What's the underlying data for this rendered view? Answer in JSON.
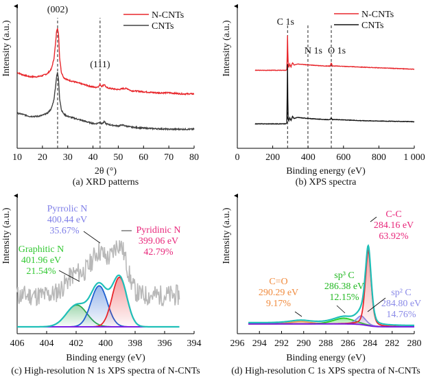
{
  "chart_data": [
    {
      "id": "a",
      "type": "line",
      "caption": "(a) XRD patterns",
      "xlabel": "2θ (°)",
      "ylabel": "Intensity (a.u.)",
      "xlim": [
        10,
        80
      ],
      "xticks": [
        10,
        20,
        30,
        40,
        50,
        60,
        70,
        80
      ],
      "legend": {
        "position": "top-right",
        "entries": [
          {
            "name": "N-CNTs",
            "color": "#e8262b"
          },
          {
            "name": "CNTs",
            "color": "#404040"
          }
        ]
      },
      "annotations": [
        {
          "text": "(002)",
          "x": 26.0
        },
        {
          "text": "(111)",
          "x": 42.8
        }
      ],
      "reference_lines": [
        26.0,
        42.8
      ],
      "series": [
        {
          "name": "N-CNTs",
          "color": "#e8262b",
          "x": [
            10,
            12,
            15,
            18,
            20,
            22,
            23.5,
            24.5,
            25.2,
            25.6,
            26.0,
            26.4,
            26.8,
            27.5,
            28.5,
            30,
            33,
            36,
            39,
            41,
            42.3,
            42.8,
            43.4,
            44,
            44.5,
            45.2,
            47,
            50,
            52,
            53.5,
            55,
            60,
            65,
            70,
            75,
            80
          ],
          "y": [
            0.58,
            0.56,
            0.54,
            0.54,
            0.55,
            0.57,
            0.61,
            0.7,
            0.85,
            0.97,
            1.0,
            0.92,
            0.72,
            0.58,
            0.53,
            0.51,
            0.49,
            0.47,
            0.45,
            0.44,
            0.45,
            0.47,
            0.45,
            0.46,
            0.47,
            0.44,
            0.43,
            0.42,
            0.43,
            0.43,
            0.41,
            0.4,
            0.39,
            0.39,
            0.38,
            0.38
          ]
        },
        {
          "name": "CNTs",
          "color": "#404040",
          "x": [
            10,
            12,
            15,
            18,
            20,
            22,
            23.5,
            24.5,
            25.2,
            25.6,
            26.0,
            26.4,
            26.8,
            27.5,
            28.5,
            30,
            33,
            36,
            39,
            41,
            42.3,
            42.8,
            43.4,
            44,
            44.5,
            45.2,
            47,
            50,
            51.5,
            53,
            55,
            60,
            65,
            70,
            75,
            80
          ],
          "y": [
            0.2,
            0.19,
            0.17,
            0.17,
            0.18,
            0.2,
            0.24,
            0.32,
            0.45,
            0.55,
            0.58,
            0.5,
            0.34,
            0.23,
            0.19,
            0.17,
            0.15,
            0.13,
            0.11,
            0.1,
            0.11,
            0.12,
            0.1,
            0.11,
            0.12,
            0.1,
            0.09,
            0.08,
            0.09,
            0.08,
            0.07,
            0.06,
            0.055,
            0.05,
            0.05,
            0.05
          ]
        }
      ]
    },
    {
      "id": "b",
      "type": "line",
      "caption": "(b) XPS spectra",
      "xlabel": "Binding energy (eV)",
      "ylabel": "Intensity (a.u.)",
      "xlim": [
        0,
        1000
      ],
      "xticks": [
        0,
        200,
        400,
        600,
        800,
        1000
      ],
      "xtick_labels": [
        "0",
        "200",
        "400",
        "600",
        "800",
        "1 000"
      ],
      "legend": {
        "position": "top-right",
        "entries": [
          {
            "name": "N-CNTs",
            "color": "#e8262b"
          },
          {
            "name": "CNTs",
            "color": "#111111"
          }
        ]
      },
      "annotations": [
        {
          "text": "C 1s",
          "x": 284
        },
        {
          "text": "N 1s",
          "x": 399
        },
        {
          "text": "O 1s",
          "x": 531
        }
      ],
      "reference_lines": [
        284,
        399,
        531
      ],
      "series": [
        {
          "name": "N-CNTs",
          "color": "#e8262b",
          "x": [
            100,
            275,
            280,
            282,
            284,
            286,
            290,
            296,
            303,
            312,
            320,
            340,
            400,
            500,
            525,
            531,
            537,
            560,
            700,
            850,
            1000
          ],
          "y": [
            0.6,
            0.6,
            0.61,
            0.75,
            0.97,
            0.7,
            0.62,
            0.66,
            0.63,
            0.67,
            0.65,
            0.66,
            0.65,
            0.64,
            0.64,
            0.67,
            0.64,
            0.64,
            0.63,
            0.62,
            0.61
          ]
        },
        {
          "name": "CNTs",
          "color": "#111111",
          "x": [
            100,
            275,
            280,
            282,
            284,
            286,
            290,
            296,
            303,
            312,
            320,
            340,
            400,
            500,
            525,
            531,
            537,
            560,
            700,
            850,
            1000
          ],
          "y": [
            0.1,
            0.1,
            0.11,
            0.4,
            0.72,
            0.18,
            0.12,
            0.16,
            0.13,
            0.17,
            0.15,
            0.16,
            0.15,
            0.14,
            0.14,
            0.155,
            0.14,
            0.14,
            0.13,
            0.125,
            0.12
          ]
        }
      ]
    },
    {
      "id": "c",
      "type": "area",
      "caption": "(c) High-resolution N 1s XPS spectra of N-CNTs",
      "xlabel": "Binding energy (eV)",
      "ylabel": "Intensity (a.u.)",
      "xlim": [
        406,
        394
      ],
      "xticks": [
        406,
        404,
        402,
        400,
        398,
        396,
        394
      ],
      "x_range_data": [
        406,
        395
      ],
      "baseline": 0.25,
      "components": [
        {
          "name": "Graphitic N",
          "energy_ev": 401.96,
          "percent": 21.54,
          "label_lines": [
            "Graphitic N",
            "401.96 eV",
            "21.54%"
          ],
          "color": "#2fa84f",
          "label_color": "#32c832",
          "center": 401.96,
          "height": 0.33,
          "sigma": 0.7
        },
        {
          "name": "Pyrrolic N",
          "energy_ev": 400.44,
          "percent": 35.67,
          "label_lines": [
            "Pyrrolic N",
            "400.44 eV",
            "35.67%"
          ],
          "color": "#1f5fd0",
          "label_color": "#7f7fe8",
          "center": 400.44,
          "height": 0.62,
          "sigma": 0.55
        },
        {
          "name": "Pyridinic N",
          "energy_ev": 399.06,
          "percent": 42.79,
          "label_lines": [
            "Pyridinic N",
            "399.06 eV",
            "42.79%"
          ],
          "color": "#e8262b",
          "label_color": "#e8267a",
          "center": 399.06,
          "height": 0.75,
          "sigma": 0.5
        }
      ],
      "envelope_color": "#1fbfb8",
      "baseline_color": "#7b1fe0",
      "raw_color": "#b8b8b8"
    },
    {
      "id": "d",
      "type": "area",
      "caption": "(d) High-resolution C 1s XPS spectra of N-CNTs",
      "xlabel": "Binding energy (eV)",
      "ylabel": "Intensity (a.u.)",
      "xlim": [
        296,
        280
      ],
      "xticks": [
        296,
        294,
        292,
        290,
        288,
        286,
        284,
        282,
        280
      ],
      "x_range_data": [
        295,
        280
      ],
      "baseline": 0.18,
      "components": [
        {
          "name": "C=O",
          "energy_ev": 290.29,
          "percent": 9.17,
          "label_lines": [
            "C=O",
            "290.29 eV",
            "9.17%"
          ],
          "color": "#e8a050",
          "label_color": "#f08a3c",
          "center": 290.29,
          "height": 0.025,
          "sigma": 1.0
        },
        {
          "name": "sp3 C",
          "energy_ev": 286.38,
          "percent": 12.15,
          "label_lines": [
            "sp³ C",
            "286.38 eV",
            "12.15%"
          ],
          "color": "#22cc22",
          "label_color": "#22b822",
          "center": 286.38,
          "height": 0.06,
          "sigma": 1.0
        },
        {
          "name": "sp2 C",
          "energy_ev": 284.8,
          "percent": 14.76,
          "label_lines": [
            "sp² C",
            "284.80 eV",
            "14.76%"
          ],
          "color": "#8a8ae8",
          "label_color": "#8a8ae8",
          "center": 284.8,
          "height": 0.09,
          "sigma": 0.45
        },
        {
          "name": "C-C",
          "energy_ev": 284.16,
          "percent": 63.92,
          "label_lines": [
            "C-C",
            "284.16 eV",
            "63.92%"
          ],
          "color": "#e8262b",
          "label_color": "#e8267a",
          "center": 284.16,
          "height": 0.78,
          "sigma": 0.28
        }
      ],
      "envelope_color": "#1fbfb8",
      "baseline_color": "#7b1fe0"
    }
  ]
}
